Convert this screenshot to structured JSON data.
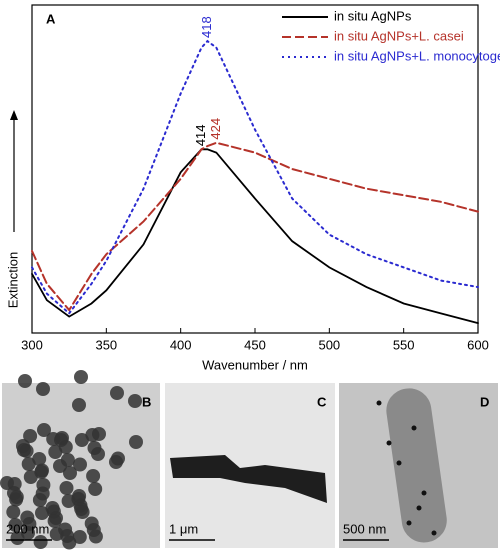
{
  "chart_data": {
    "type": "line",
    "panel_label": "A",
    "xlabel": "Wavenumber / nm",
    "ylabel": "Extinction",
    "x": [
      300,
      310,
      325,
      340,
      350,
      375,
      400,
      414,
      418,
      424,
      450,
      475,
      500,
      525,
      550,
      575,
      600
    ],
    "series": [
      {
        "name": "in situ AgNPs",
        "color": "#000000",
        "style": "solid",
        "peak": 414,
        "values": [
          0.18,
          0.1,
          0.05,
          0.09,
          0.13,
          0.27,
          0.49,
          0.56,
          0.56,
          0.55,
          0.41,
          0.28,
          0.2,
          0.14,
          0.09,
          0.06,
          0.03
        ]
      },
      {
        "name": "in situ AgNPs+L. casei",
        "color": "#b5332a",
        "style": "dashed",
        "peak": 424,
        "values": [
          0.25,
          0.15,
          0.07,
          0.18,
          0.24,
          0.34,
          0.47,
          0.56,
          0.57,
          0.58,
          0.55,
          0.5,
          0.47,
          0.44,
          0.42,
          0.4,
          0.37
        ]
      },
      {
        "name": "in situ AgNPs+L. monocytogenes",
        "color": "#2b2bd0",
        "style": "dotted",
        "peak": 418,
        "values": [
          0.2,
          0.12,
          0.06,
          0.15,
          0.22,
          0.44,
          0.73,
          0.87,
          0.89,
          0.87,
          0.62,
          0.41,
          0.3,
          0.24,
          0.2,
          0.16,
          0.14
        ]
      }
    ],
    "xlim": [
      300,
      600
    ],
    "xticks": [
      300,
      350,
      400,
      450,
      500,
      550,
      600
    ],
    "ylim": [
      0,
      1
    ],
    "legend": "upper right"
  },
  "panels": [
    {
      "label": "B",
      "scale": "200 nm"
    },
    {
      "label": "C",
      "scale": "1 μm"
    },
    {
      "label": "D",
      "scale": "500 nm"
    }
  ]
}
